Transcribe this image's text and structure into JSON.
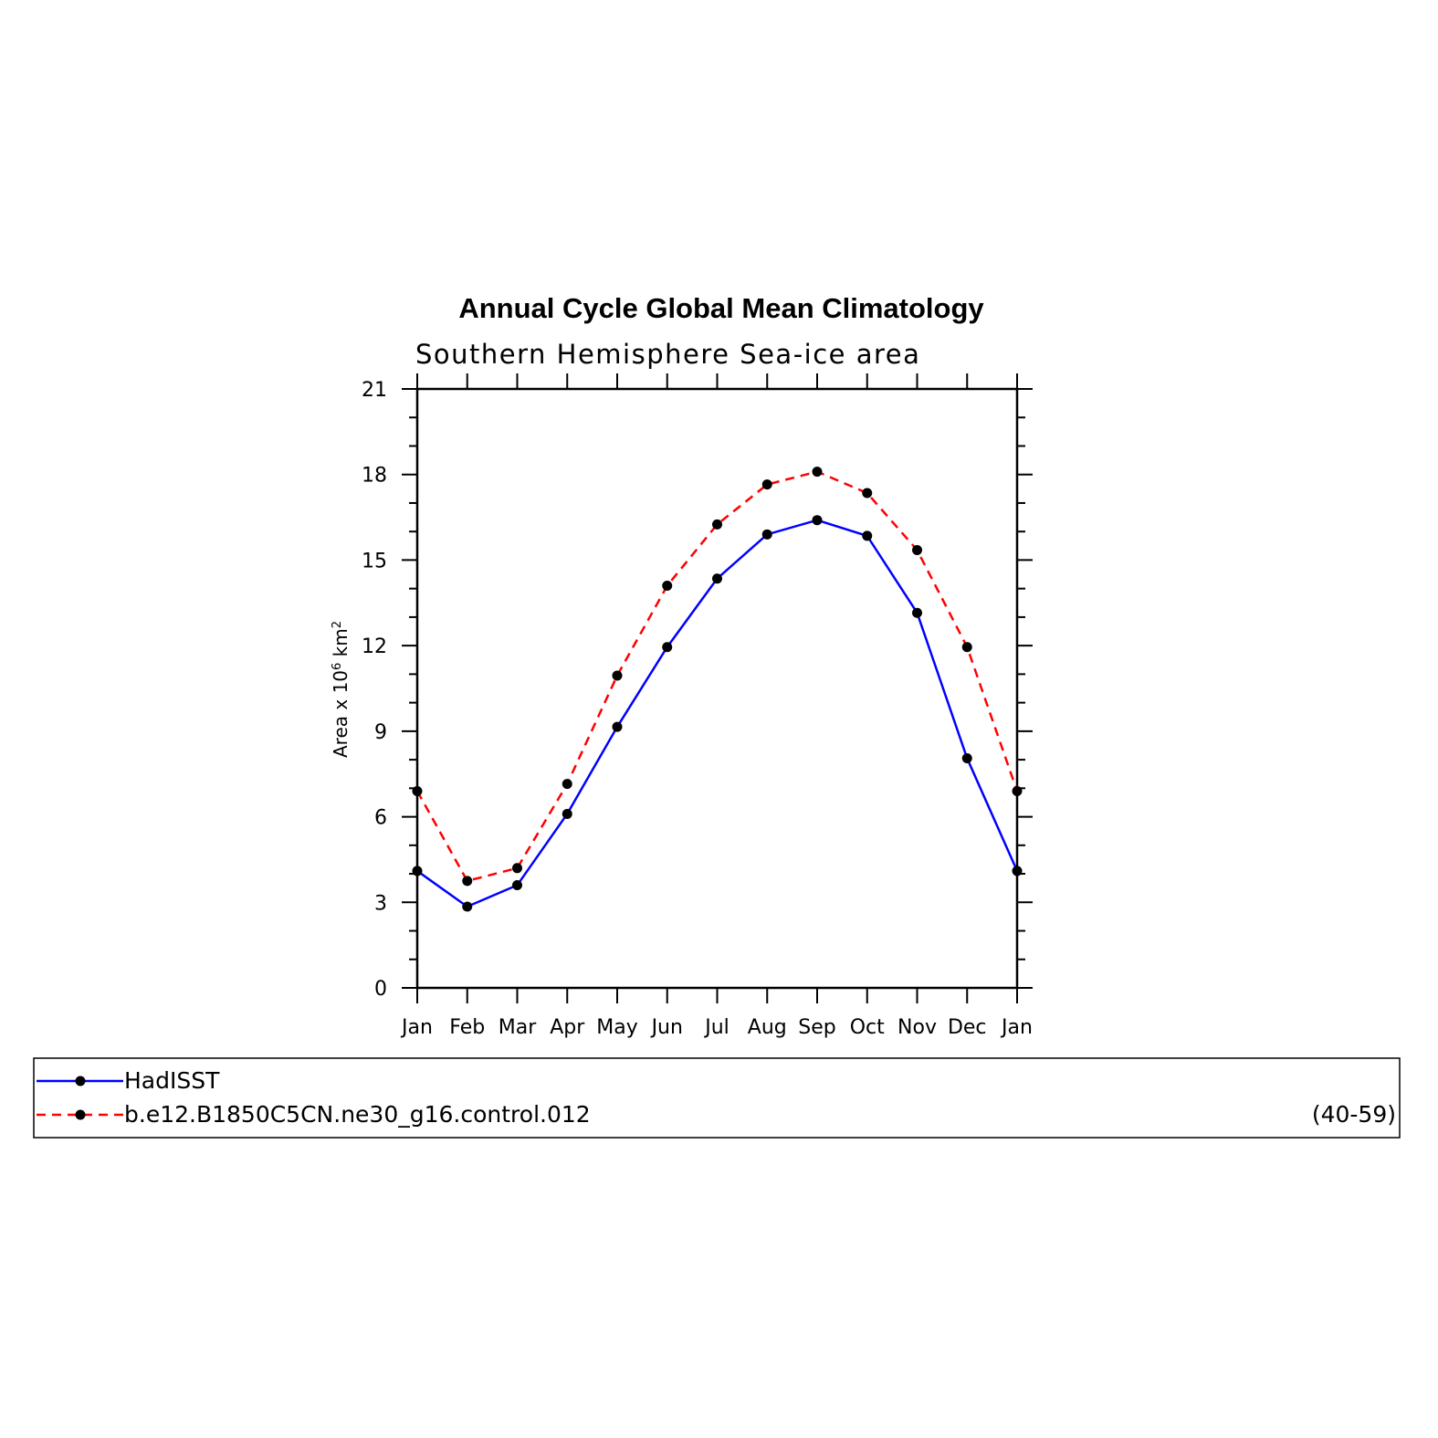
{
  "chart_data": {
    "type": "line",
    "title": "Annual Cycle Global Mean Climatology",
    "subtitle": "Southern Hemisphere Sea-ice area",
    "ylabel_parts": [
      "Area x 10",
      "6",
      " km",
      "2"
    ],
    "xlabel": "",
    "categories": [
      "Jan",
      "Feb",
      "Mar",
      "Apr",
      "May",
      "Jun",
      "Jul",
      "Aug",
      "Sep",
      "Oct",
      "Nov",
      "Dec",
      "Jan"
    ],
    "ylim": [
      0,
      21
    ],
    "yticks": [
      0,
      3,
      6,
      9,
      12,
      15,
      18,
      21
    ],
    "grid": false,
    "legend_position": "bottom",
    "series": [
      {
        "name": "HadISST",
        "color": "#0000ff",
        "dash": "solid",
        "marker": "filled-circle",
        "values": [
          4.1,
          2.85,
          3.6,
          6.1,
          9.15,
          11.95,
          14.35,
          15.9,
          16.4,
          15.85,
          13.15,
          8.05,
          4.1
        ]
      },
      {
        "name": "b.e12.B1850C5CN.ne30_g16.control.012",
        "color": "#ff0000",
        "dash": "dashed",
        "marker": "filled-circle",
        "values": [
          6.9,
          3.75,
          4.2,
          7.15,
          10.95,
          14.1,
          16.25,
          17.65,
          18.1,
          17.35,
          15.35,
          11.95,
          6.9
        ]
      }
    ],
    "legend_note": "(40-59)"
  }
}
